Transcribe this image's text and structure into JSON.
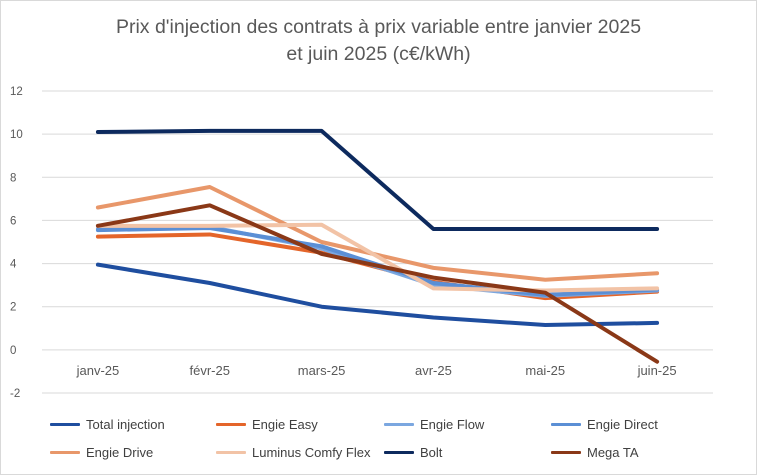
{
  "chart_data": {
    "type": "line",
    "title_line1": "Prix d'injection des contrats à prix variable entre janvier 2025",
    "title_line2": "et juin 2025 (c€/kWh)",
    "categories": [
      "janv-25",
      "févr-25",
      "mars-25",
      "avr-25",
      "mai-25",
      "juin-25"
    ],
    "ylim": [
      -2,
      12
    ],
    "yticks": [
      -2,
      0,
      2,
      4,
      6,
      8,
      10,
      12
    ],
    "grid": true,
    "legend_position": "bottom",
    "series": [
      {
        "name": "Total injection",
        "color": "#1f4e9f",
        "values": [
          3.95,
          3.1,
          2.0,
          1.5,
          1.15,
          1.25
        ]
      },
      {
        "name": "Engie Easy",
        "color": "#e4652a",
        "values": [
          5.25,
          5.35,
          4.5,
          3.15,
          2.4,
          2.7
        ]
      },
      {
        "name": "Engie Flow",
        "color": "#7ba7e0",
        "values": [
          5.6,
          5.7,
          4.7,
          3.0,
          2.5,
          2.75
        ]
      },
      {
        "name": "Engie Direct",
        "color": "#5b8fd5",
        "values": [
          5.55,
          5.65,
          4.8,
          3.1,
          2.55,
          2.8
        ]
      },
      {
        "name": "Engie Drive",
        "color": "#e8976a",
        "values": [
          6.6,
          7.55,
          5.0,
          3.8,
          3.25,
          3.55
        ]
      },
      {
        "name": "Luminus Comfy Flex",
        "color": "#f2c3a6",
        "values": [
          5.75,
          5.75,
          5.8,
          2.85,
          2.75,
          2.85
        ]
      },
      {
        "name": "Bolt",
        "color": "#0d2a5e",
        "values": [
          10.1,
          10.15,
          10.15,
          5.6,
          5.6,
          5.6
        ]
      },
      {
        "name": "Mega TA",
        "color": "#8a3817",
        "values": [
          5.75,
          6.7,
          4.45,
          3.35,
          2.65,
          -0.55
        ]
      }
    ]
  }
}
